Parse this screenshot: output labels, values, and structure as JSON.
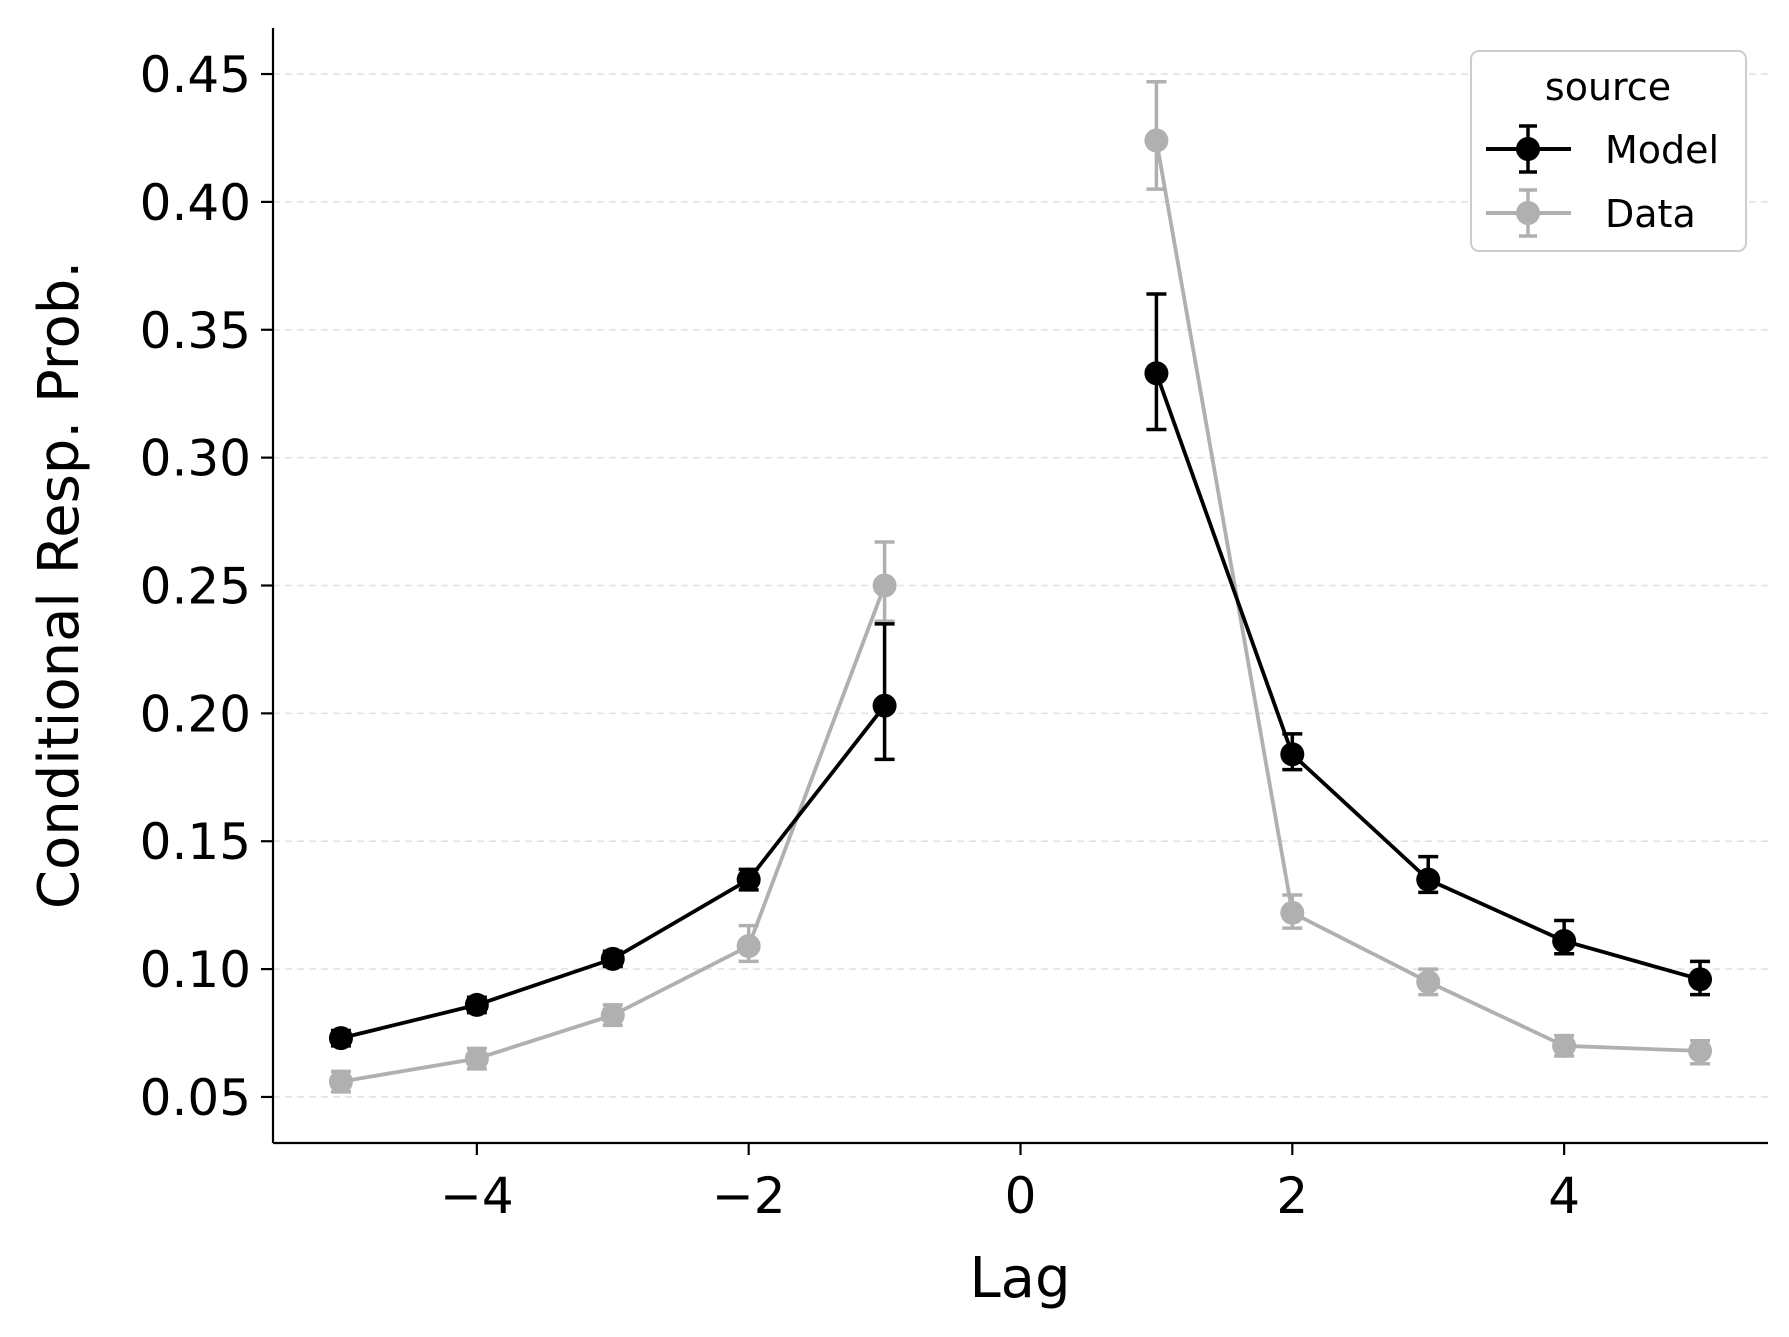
{
  "chart_data": {
    "type": "line",
    "title": "",
    "xlabel": "Lag",
    "ylabel": "Conditional Resp. Prob.",
    "xlim": [
      -5.5,
      5.5
    ],
    "ylim": [
      0.032,
      0.468
    ],
    "xticks": [
      -4,
      -2,
      0,
      2,
      4
    ],
    "xtick_labels": [
      "−4",
      "−2",
      "0",
      "2",
      "4"
    ],
    "yticks": [
      0.05,
      0.1,
      0.15,
      0.2,
      0.25,
      0.3,
      0.35,
      0.4,
      0.45
    ],
    "ytick_labels": [
      "0.05",
      "0.10",
      "0.15",
      "0.20",
      "0.25",
      "0.30",
      "0.35",
      "0.40",
      "0.45"
    ],
    "grid": "horizontal dashed",
    "legend": {
      "title": "source",
      "placement": "top-right"
    },
    "series": [
      {
        "name": "Model",
        "color": "#000000",
        "segments": [
          [
            {
              "x": -5,
              "y": 0.073,
              "err_low": 0.07,
              "err_high": 0.076
            },
            {
              "x": -4,
              "y": 0.086,
              "err_low": 0.083,
              "err_high": 0.089
            },
            {
              "x": -3,
              "y": 0.104,
              "err_low": 0.101,
              "err_high": 0.107
            },
            {
              "x": -2,
              "y": 0.135,
              "err_low": 0.131,
              "err_high": 0.139
            },
            {
              "x": -1,
              "y": 0.203,
              "err_low": 0.182,
              "err_high": 0.235
            }
          ],
          [
            {
              "x": 1,
              "y": 0.333,
              "err_low": 0.311,
              "err_high": 0.364
            },
            {
              "x": 2,
              "y": 0.184,
              "err_low": 0.178,
              "err_high": 0.192
            },
            {
              "x": 3,
              "y": 0.135,
              "err_low": 0.13,
              "err_high": 0.144
            },
            {
              "x": 4,
              "y": 0.111,
              "err_low": 0.106,
              "err_high": 0.119
            },
            {
              "x": 5,
              "y": 0.096,
              "err_low": 0.09,
              "err_high": 0.103
            }
          ]
        ]
      },
      {
        "name": "Data",
        "color": "#b0b0b0",
        "segments": [
          [
            {
              "x": -5,
              "y": 0.056,
              "err_low": 0.052,
              "err_high": 0.06
            },
            {
              "x": -4,
              "y": 0.065,
              "err_low": 0.061,
              "err_high": 0.069
            },
            {
              "x": -3,
              "y": 0.082,
              "err_low": 0.078,
              "err_high": 0.086
            },
            {
              "x": -2,
              "y": 0.109,
              "err_low": 0.103,
              "err_high": 0.117
            },
            {
              "x": -1,
              "y": 0.25,
              "err_low": 0.236,
              "err_high": 0.267
            }
          ],
          [
            {
              "x": 1,
              "y": 0.424,
              "err_low": 0.405,
              "err_high": 0.447
            },
            {
              "x": 2,
              "y": 0.122,
              "err_low": 0.116,
              "err_high": 0.129
            },
            {
              "x": 3,
              "y": 0.095,
              "err_low": 0.09,
              "err_high": 0.1
            },
            {
              "x": 4,
              "y": 0.07,
              "err_low": 0.066,
              "err_high": 0.074
            },
            {
              "x": 5,
              "y": 0.068,
              "err_low": 0.063,
              "err_high": 0.072
            }
          ]
        ]
      }
    ]
  }
}
